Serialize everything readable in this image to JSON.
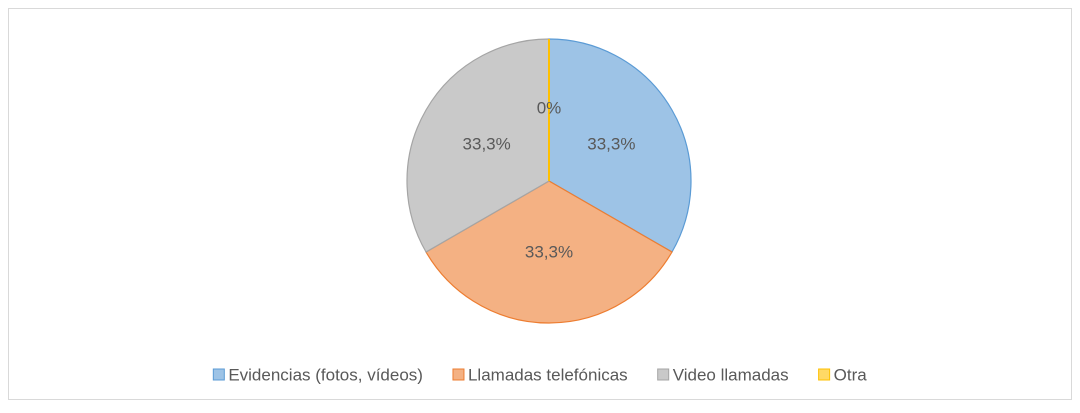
{
  "chart_data": {
    "type": "pie",
    "categories": [
      "Evidencias (fotos, vídeos)",
      "Llamadas telefónicas",
      "Video llamadas",
      "Otra"
    ],
    "values": [
      33.3,
      33.3,
      33.3,
      0
    ],
    "value_labels": [
      "33,3%",
      "33,3%",
      "33,3%",
      "0%"
    ],
    "colors": [
      "#9dc3e6",
      "#f4b183",
      "#c9c9c9",
      "#ffd966"
    ],
    "edge_colors": [
      "#5b9bd5",
      "#ed7d31",
      "#a5a5a5",
      "#ffc000"
    ],
    "legend": "bottom"
  }
}
